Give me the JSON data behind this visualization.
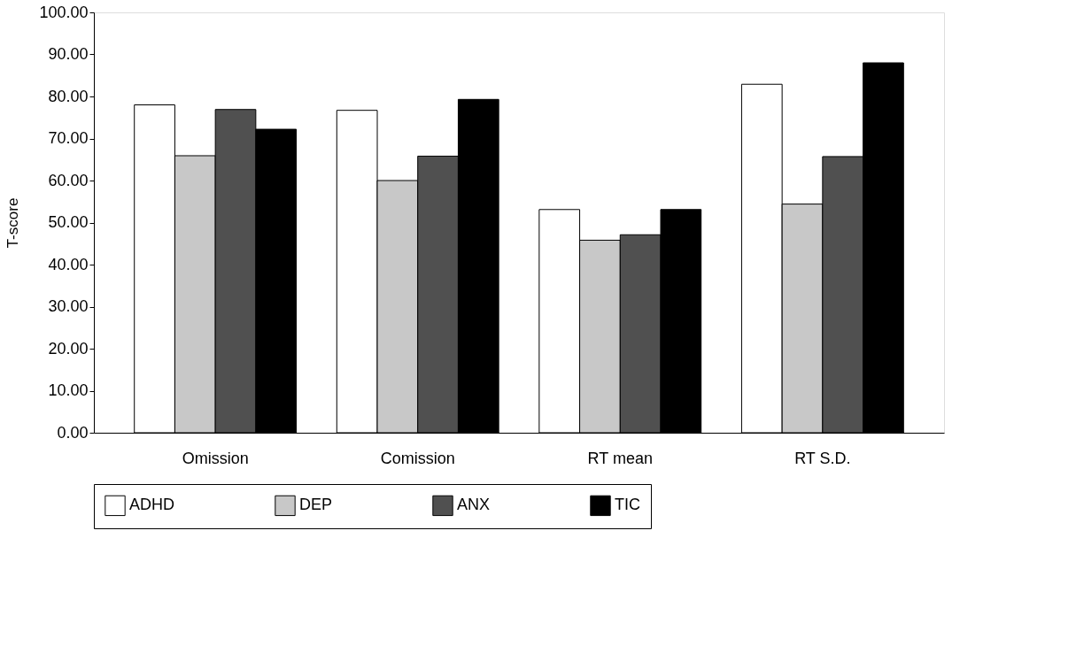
{
  "chart_data": {
    "type": "bar",
    "ylabel": "T-score",
    "categories": [
      "Omission",
      "Comission",
      "RT mean",
      "RT S.D."
    ],
    "series": [
      {
        "name": "ADHD",
        "color": "#ffffff",
        "values": [
          78.0,
          76.7,
          53.1,
          82.9
        ]
      },
      {
        "name": "DEP",
        "color": "#c8c8c8",
        "values": [
          65.9,
          60.0,
          45.8,
          54.4
        ]
      },
      {
        "name": "ANX",
        "color": "#505050",
        "values": [
          76.9,
          65.8,
          47.1,
          65.7
        ]
      },
      {
        "name": "TIC",
        "color": "#000000",
        "values": [
          72.2,
          79.3,
          53.1,
          88.0
        ]
      }
    ],
    "ylim": [
      0,
      100
    ],
    "yticks": [
      {
        "value": 0,
        "label": "0.00"
      },
      {
        "value": 10,
        "label": "10.00"
      },
      {
        "value": 20,
        "label": "20.00"
      },
      {
        "value": 30,
        "label": "30.00"
      },
      {
        "value": 40,
        "label": "40.00"
      },
      {
        "value": 50,
        "label": "50.00"
      },
      {
        "value": 60,
        "label": "60.00"
      },
      {
        "value": 70,
        "label": "70.00"
      },
      {
        "value": 80,
        "label": "80.00"
      },
      {
        "value": 90,
        "label": "90.00"
      },
      {
        "value": 100,
        "label": "100.00"
      }
    ],
    "grid": false,
    "legend": "bottom"
  }
}
